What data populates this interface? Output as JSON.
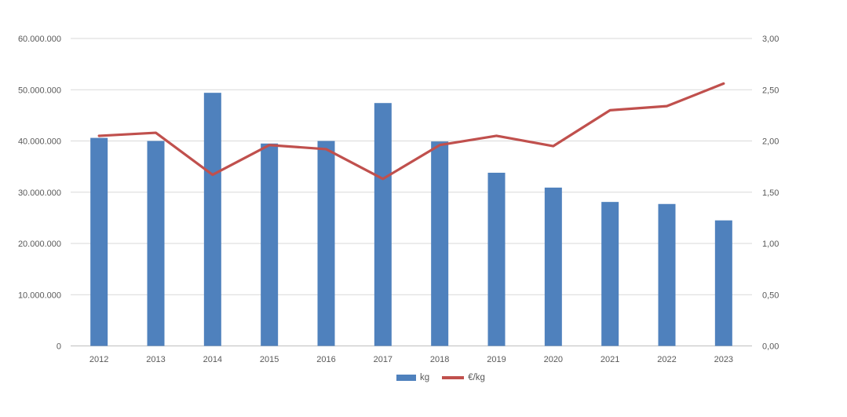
{
  "chart_data": {
    "type": "bar",
    "title": "",
    "categories": [
      "2012",
      "2013",
      "2014",
      "2015",
      "2016",
      "2017",
      "2018",
      "2019",
      "2020",
      "2021",
      "2022",
      "2023"
    ],
    "series": [
      {
        "name": "kg",
        "type": "bar",
        "axis": "left",
        "color": "#4F81BD",
        "values": [
          40600000,
          40000000,
          49400000,
          39500000,
          40000000,
          47400000,
          39900000,
          33800000,
          30900000,
          28100000,
          27700000,
          24500000
        ]
      },
      {
        "name": "€/kg",
        "type": "line",
        "axis": "right",
        "color": "#C0504D",
        "values": [
          2.05,
          2.08,
          1.67,
          1.96,
          1.92,
          1.63,
          1.96,
          2.05,
          1.95,
          2.3,
          2.34,
          2.56
        ]
      }
    ],
    "left_axis": {
      "min": 0,
      "max": 60000000,
      "ticks": [
        "60.000.000",
        "50.000.000",
        "40.000.000",
        "30.000.000",
        "20.000.000",
        "10.000.000",
        "0"
      ]
    },
    "right_axis": {
      "min": 0,
      "max": 3,
      "ticks": [
        "3,00",
        "2,50",
        "2,00",
        "1,50",
        "1,00",
        "0,50",
        "0,00"
      ]
    },
    "grid": true,
    "legend_position": "bottom",
    "colors": {
      "gridline": "#D9D9D9",
      "axis_line": "#BFBFBF",
      "tick_text": "#595959"
    }
  }
}
